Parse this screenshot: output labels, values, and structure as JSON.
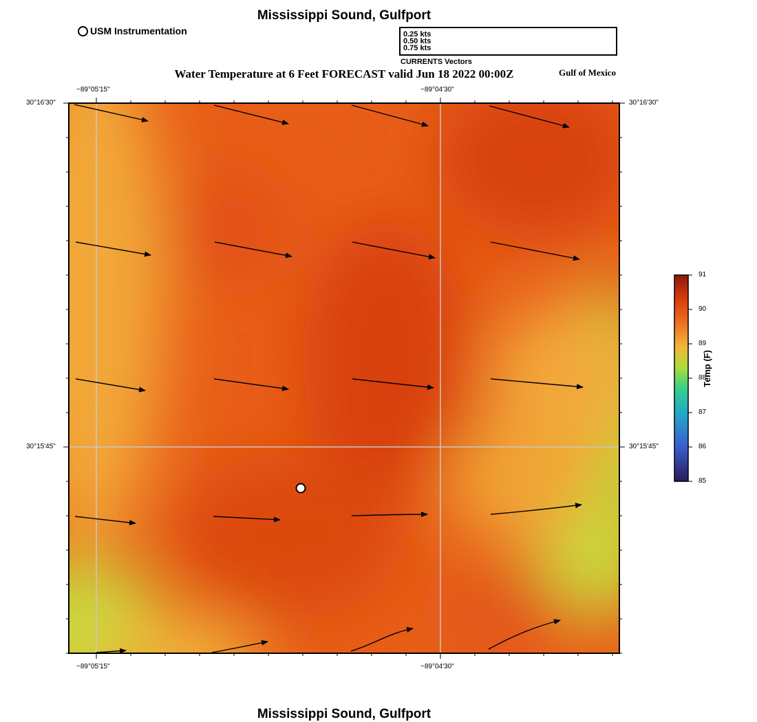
{
  "header": {
    "title": "Mississippi Sound, Gulfport",
    "footer_title": "Mississippi Sound, Gulfport",
    "subtitle": "Water Temperature at 6 Feet FORECAST valid Jun 18 2022 00:00Z",
    "region_label": "Gulf of Mexico"
  },
  "instrument_legend": {
    "label": "USM Instrumentation",
    "icon": "circle-marker-icon"
  },
  "vector_legend": {
    "entries": [
      "0.25 kts",
      "0.50 kts",
      "0.75 kts"
    ],
    "caption": "CURRENTS Vectors"
  },
  "map": {
    "lon_ticks": [
      "−89°05'15\"",
      "−89°04'30\""
    ],
    "lat_ticks": [
      "30°16'30\"",
      "30°15'45\""
    ]
  },
  "colorbar": {
    "title": "Temp (F)",
    "ticks": [
      "91",
      "90",
      "89",
      "88",
      "87",
      "86",
      "85"
    ],
    "min": 85,
    "max": 91,
    "colors": [
      "#2b1b5a",
      "#3a5fcd",
      "#23a8c9",
      "#37d08a",
      "#a9dd3a",
      "#f2b63a",
      "#ec6a1e",
      "#d93e0c",
      "#8a1a0a"
    ]
  }
}
